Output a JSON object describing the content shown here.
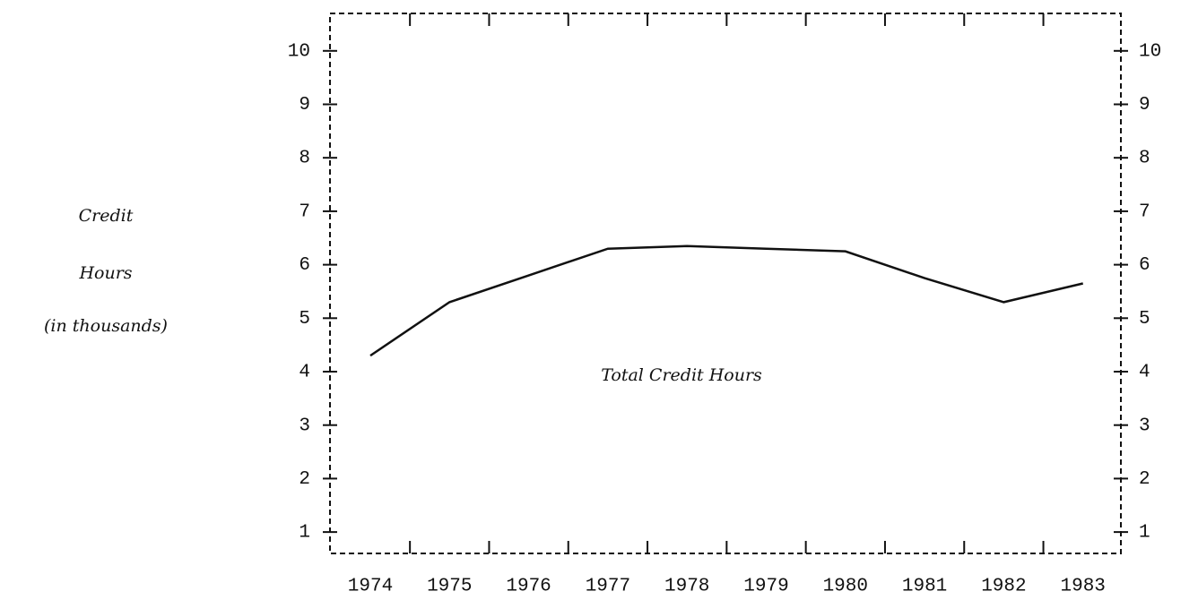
{
  "chart_data": {
    "type": "line",
    "ylabel": [
      "Credit",
      "Hours",
      "(in thousands)"
    ],
    "annotation": "Total Credit Hours",
    "categories": [
      "1974",
      "1975",
      "1976",
      "1977",
      "1978",
      "1979",
      "1980",
      "1981",
      "1982",
      "1983"
    ],
    "series": [
      {
        "name": "Total Credit Hours",
        "color": "#111111",
        "values": [
          4.3,
          5.3,
          5.8,
          6.3,
          6.35,
          6.3,
          6.25,
          5.75,
          5.3,
          5.65
        ]
      }
    ],
    "ylim": [
      0.6,
      10.7
    ],
    "yticks": [
      1,
      2,
      3,
      4,
      5,
      6,
      7,
      8,
      9,
      10
    ],
    "right_axis": true
  }
}
